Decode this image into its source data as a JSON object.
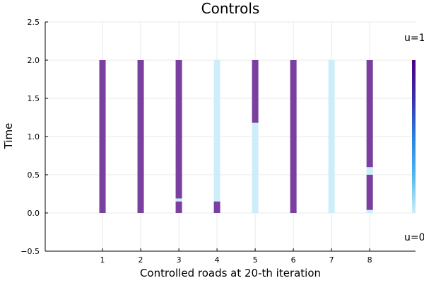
{
  "chart_data": {
    "type": "heatmap",
    "title": "Controls",
    "xlabel": "Controlled roads at 20-th iteration",
    "ylabel": "Time",
    "xlim": [
      -0.5,
      9.2
    ],
    "ylim": [
      -0.5,
      2.5
    ],
    "xticks": [
      1,
      2,
      3,
      4,
      5,
      6,
      7,
      8
    ],
    "yticks": [
      -0.5,
      0.0,
      0.5,
      1.0,
      1.5,
      2.0,
      2.5
    ],
    "ytick_labels": [
      "−0.5",
      "0.0",
      "0.5",
      "1.0",
      "1.5",
      "2.0",
      "2.5"
    ],
    "grid": true,
    "time_range": [
      0.0,
      2.0
    ],
    "colors": {
      "u1": "#7a3f9f",
      "u0": "#cdeef9"
    },
    "colorbar": {
      "max_label": "u=1",
      "min_label": "u=0",
      "gradient": [
        "#cdeef9",
        "#4fb6ee",
        "#2a7fe0",
        "#3a2fa8",
        "#4b0082"
      ]
    },
    "roads": [
      {
        "road": 1,
        "on_segments": [
          [
            0.0,
            2.0
          ]
        ]
      },
      {
        "road": 2,
        "on_segments": [
          [
            0.0,
            2.0
          ]
        ]
      },
      {
        "road": 3,
        "on_segments": [
          [
            0.0,
            0.15
          ],
          [
            0.19,
            2.0
          ]
        ]
      },
      {
        "road": 4,
        "on_segments": [
          [
            0.0,
            0.15
          ]
        ]
      },
      {
        "road": 5,
        "on_segments": [
          [
            1.18,
            2.0
          ]
        ]
      },
      {
        "road": 6,
        "on_segments": [
          [
            0.0,
            2.0
          ]
        ]
      },
      {
        "road": 7,
        "on_segments": []
      },
      {
        "road": 8,
        "on_segments": [
          [
            0.04,
            0.5
          ],
          [
            0.6,
            2.0
          ]
        ]
      }
    ]
  }
}
